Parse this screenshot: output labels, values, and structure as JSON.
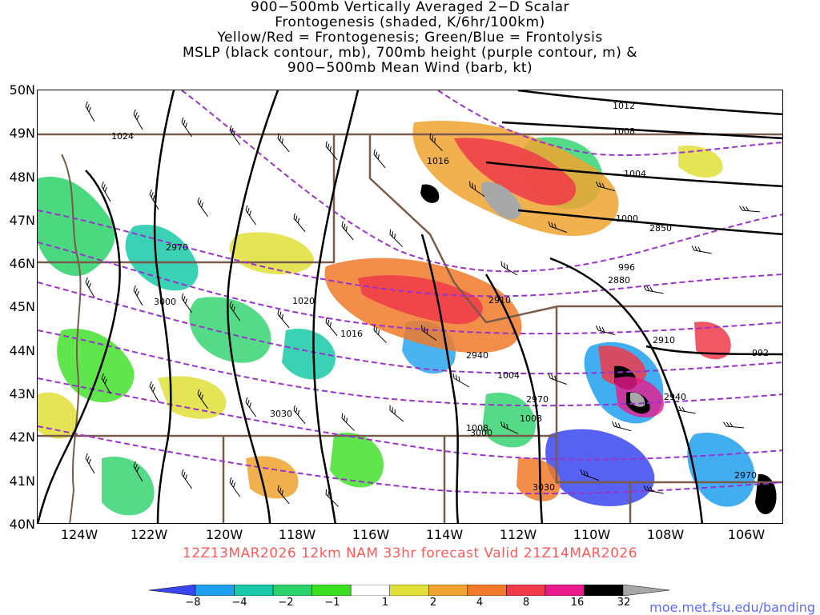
{
  "title_lines": [
    "900−500mb Vertically Averaged 2−D Scalar",
    "Frontogenesis (shaded, K/6hr/100km)",
    "Yellow/Red = Frontogenesis;  Green/Blue = Frontolysis",
    "MSLP (black contour, mb), 700mb height (purple contour, m) &",
    "900−500mb Mean Wind (barb, kt)"
  ],
  "lat_labels": [
    "50N",
    "49N",
    "48N",
    "47N",
    "46N",
    "45N",
    "44N",
    "43N",
    "42N",
    "41N",
    "40N"
  ],
  "lon_labels": [
    "124W",
    "122W",
    "120W",
    "118W",
    "116W",
    "114W",
    "112W",
    "110W",
    "108W",
    "106W"
  ],
  "valid_line": "12Z13MAR2026 12km NAM 33hr forecast Valid 21Z14MAR2026",
  "colorbar": {
    "labels": [
      "−8",
      "−4",
      "−2",
      "−1",
      "1",
      "2",
      "4",
      "8",
      "16",
      "32"
    ],
    "colors": [
      "#3a45f0",
      "#1fa0ee",
      "#17c9a8",
      "#2bd26a",
      "#38e01f",
      "#ffffff",
      "#e0df3a",
      "#f0a330",
      "#f07a2a",
      "#f03a4a",
      "#e81a8c",
      "#000000",
      "#a8a8a8"
    ]
  },
  "mslp_labels": [
    "1012",
    "1008",
    "1004",
    "1000",
    "996",
    "992",
    "1016",
    "1020",
    "1016",
    "1024",
    "1004",
    "1008",
    "1008"
  ],
  "height_labels": [
    "2850",
    "2880",
    "2910",
    "2910",
    "2940",
    "2940",
    "2970",
    "2970",
    "2970",
    "3000",
    "3000",
    "3030",
    "3030"
  ],
  "credit": "moe.met.fsu.edu/banding",
  "colors": {
    "mslp": "#000000",
    "height": "#9933cc",
    "borders": "#7a5a4a",
    "valid_text": "#ff5a5a"
  }
}
